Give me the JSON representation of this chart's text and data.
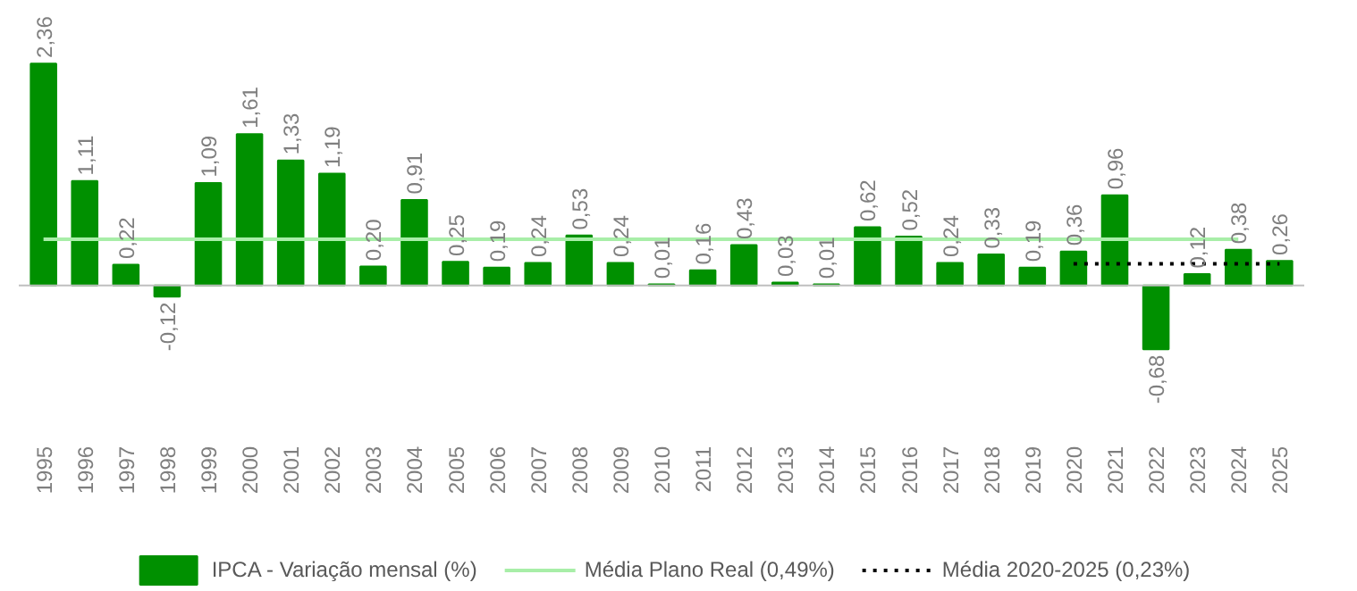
{
  "chart_data": {
    "type": "bar",
    "categories": [
      "1995",
      "1996",
      "1997",
      "1998",
      "1999",
      "2000",
      "2001",
      "2002",
      "2003",
      "2004",
      "2005",
      "2006",
      "2007",
      "2008",
      "2009",
      "2010",
      "2011",
      "2012",
      "2013",
      "2014",
      "2015",
      "2016",
      "2017",
      "2018",
      "2019",
      "2020",
      "2021",
      "2022",
      "2023",
      "2024",
      "2025"
    ],
    "series": [
      {
        "name": "IPCA - Variação mensal (%)",
        "color": "#009000",
        "values": [
          2.36,
          1.11,
          0.22,
          -0.12,
          1.09,
          1.61,
          1.33,
          1.19,
          0.2,
          0.91,
          0.25,
          0.19,
          0.24,
          0.53,
          0.24,
          0.01,
          0.16,
          0.43,
          0.03,
          0.01,
          0.62,
          0.52,
          0.24,
          0.33,
          0.19,
          0.36,
          0.96,
          -0.68,
          0.12,
          0.38,
          0.26
        ],
        "value_labels": [
          "2,36",
          "1,11",
          "0,22",
          "-0,12",
          "1,09",
          "1,61",
          "1,33",
          "1,19",
          "0,20",
          "0,91",
          "0,25",
          "0,19",
          "0,24",
          "0,53",
          "0,24",
          "0,01",
          "0,16",
          "0,43",
          "0,03",
          "0,01",
          "0,62",
          "0,52",
          "0,24",
          "0,33",
          "0,19",
          "0,36",
          "0,96",
          "-0,68",
          "0,12",
          "0,38",
          "0,26"
        ]
      },
      {
        "name": "Média Plano Real (0,49%)",
        "type": "line",
        "color": "#a8eea8",
        "line_style": "solid",
        "values": [
          0.49,
          0.49,
          0.49,
          0.49,
          0.49,
          0.49,
          0.49,
          0.49,
          0.49,
          0.49,
          0.49,
          0.49,
          0.49,
          0.49,
          0.49,
          0.49,
          0.49,
          0.49,
          0.49,
          0.49,
          0.49,
          0.49,
          0.49,
          0.49,
          0.49,
          0.49,
          0.49,
          0.49,
          0.49,
          0.49,
          null
        ]
      },
      {
        "name": "Média 2020-2025 (0,23%)",
        "type": "line",
        "color": "#000000",
        "line_style": "dotted",
        "values": [
          null,
          null,
          null,
          null,
          null,
          null,
          null,
          null,
          null,
          null,
          null,
          null,
          null,
          null,
          null,
          null,
          null,
          null,
          null,
          null,
          null,
          null,
          null,
          null,
          null,
          0.23,
          0.23,
          0.23,
          0.23,
          0.23,
          0.23
        ]
      }
    ],
    "legend": "bottom",
    "grid": false
  }
}
